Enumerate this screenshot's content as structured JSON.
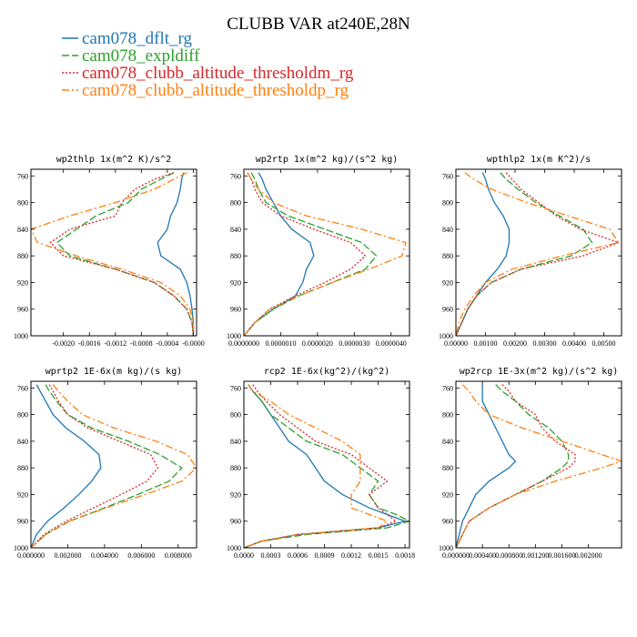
{
  "title": "CLUBB VAR at240E,28N",
  "legend": [
    {
      "name": "cam078_dflt_rg",
      "color": "#1f77b4",
      "dash": ""
    },
    {
      "name": "cam078_expldiff",
      "color": "#2ca02c",
      "dash": "8,3"
    },
    {
      "name": "cam078_clubb_altitude_thresholdm_rg",
      "color": "#d62728",
      "dash": "2,2"
    },
    {
      "name": "cam078_clubb_altitude_thresholdp_rg",
      "color": "#ff7f0e",
      "dash": "8,3,2,3"
    }
  ],
  "chart_data": [
    {
      "type": "line",
      "title": "wp2thlp  1x(m^2 K)/s^2",
      "xlim": [
        -0.0025,
        5e-05
      ],
      "ylim": [
        1000,
        750
      ],
      "yticks": [
        "760",
        "800",
        "840",
        "880",
        "920",
        "960",
        "1000"
      ],
      "xticks": [
        "-0.0020",
        "-0.0016",
        "-0.0012",
        "-0.0008",
        "-0.0004",
        "-0.0000"
      ],
      "y": [
        755,
        765,
        780,
        800,
        820,
        840,
        860,
        880,
        900,
        920,
        940,
        960,
        980,
        1000
      ],
      "series": [
        {
          "name": "cam078_dflt_rg",
          "values": [
            -0.00015,
            -0.00018,
            -0.0002,
            -0.00025,
            -0.00035,
            -0.0004,
            -0.00055,
            -0.0005,
            -0.0002,
            -0.0001,
            -5e-05,
            -2e-05,
            0.0,
            0.0
          ]
        },
        {
          "name": "cam078_expldiff",
          "values": [
            -0.0003,
            -0.0005,
            -0.0008,
            -0.001,
            -0.0015,
            -0.0018,
            -0.0021,
            -0.0019,
            -0.0012,
            -0.0006,
            -0.0003,
            -0.0001,
            -2e-05,
            0.0
          ]
        },
        {
          "name": "cam078_clubb_altitude_thresholdm_rg",
          "values": [
            -0.0003,
            -0.0006,
            -0.0009,
            -0.0011,
            -0.0012,
            -0.0019,
            -0.0022,
            -0.002,
            -0.0012,
            -0.0006,
            -0.0003,
            -0.0001,
            -2e-05,
            0.0
          ]
        },
        {
          "name": "cam078_clubb_altitude_thresholdp_rg",
          "values": [
            -0.0001,
            -0.0003,
            -0.0006,
            -0.0012,
            -0.0019,
            -0.0025,
            -0.0024,
            -0.0018,
            -0.0011,
            -0.0005,
            -0.0002,
            -5e-05,
            0.0,
            0.0
          ]
        }
      ]
    },
    {
      "type": "line",
      "title": "wp2rtp  1x(m^2 kg)/(s^2 kg)",
      "xlim": [
        0,
        4.5e-06
      ],
      "ylim": [
        1000,
        750
      ],
      "yticks": [
        "760",
        "800",
        "840",
        "880",
        "920",
        "960",
        "1000"
      ],
      "xticks": [
        "0.0000000",
        "0.0000010",
        "0.0000020",
        "0.0000030",
        "0.0000040"
      ],
      "y": [
        755,
        765,
        780,
        800,
        820,
        840,
        860,
        880,
        900,
        920,
        940,
        960,
        980,
        1000
      ],
      "series": [
        {
          "name": "cam078_dflt_rg",
          "values": [
            4e-07,
            5e-07,
            6e-07,
            8e-07,
            1e-06,
            1.3e-06,
            1.8e-06,
            1.9e-06,
            1.7e-06,
            1.6e-06,
            1.4e-06,
            8e-07,
            3e-07,
            0.0
          ]
        },
        {
          "name": "cam078_expldiff",
          "values": [
            2e-07,
            3e-07,
            4e-07,
            6e-07,
            1.2e-06,
            2.2e-06,
            3.2e-06,
            3.6e-06,
            3.3e-06,
            2.4e-06,
            1.5e-06,
            8e-07,
            3e-07,
            0.0
          ]
        },
        {
          "name": "cam078_clubb_altitude_thresholdm_rg",
          "values": [
            1e-07,
            2e-07,
            3e-07,
            5e-07,
            1e-06,
            1.9e-06,
            2.9e-06,
            3.3e-06,
            2.9e-06,
            2.2e-06,
            1.4e-06,
            7e-07,
            3e-07,
            0.0
          ]
        },
        {
          "name": "cam078_clubb_altitude_thresholdp_rg",
          "values": [
            1e-07,
            2e-07,
            4e-07,
            8e-07,
            1.7e-06,
            3.2e-06,
            4.4e-06,
            4.3e-06,
            3.4e-06,
            2.4e-06,
            1.5e-06,
            7e-07,
            3e-07,
            0.0
          ]
        }
      ]
    },
    {
      "type": "line",
      "title": "wpthlp2  1x(m K^2)/s",
      "xlim": [
        0,
        0.0056
      ],
      "ylim": [
        1000,
        750
      ],
      "yticks": [
        "760",
        "800",
        "840",
        "880",
        "920",
        "960",
        "1000"
      ],
      "xticks": [
        "0.00000",
        "0.00100",
        "0.00200",
        "0.00300",
        "0.00400",
        "0.00500"
      ],
      "y": [
        755,
        765,
        780,
        800,
        820,
        840,
        860,
        880,
        900,
        920,
        940,
        960,
        980,
        1000
      ],
      "series": [
        {
          "name": "cam078_dflt_rg",
          "values": [
            0.0009,
            0.001,
            0.0011,
            0.0013,
            0.0016,
            0.0018,
            0.0018,
            0.0017,
            0.0014,
            0.001,
            0.0007,
            0.0004,
            0.0002,
            0.0
          ]
        },
        {
          "name": "cam078_expldiff",
          "values": [
            0.0015,
            0.0017,
            0.0021,
            0.0027,
            0.0035,
            0.0043,
            0.0046,
            0.0039,
            0.0022,
            0.0012,
            0.0007,
            0.0004,
            0.0002,
            0.0
          ]
        },
        {
          "name": "cam078_clubb_altitude_thresholdm_rg",
          "values": [
            0.0017,
            0.0019,
            0.0022,
            0.0028,
            0.0034,
            0.0042,
            0.0055,
            0.0043,
            0.0022,
            0.0012,
            0.0007,
            0.0004,
            0.0002,
            0.0
          ]
        },
        {
          "name": "cam078_clubb_altitude_thresholdp_rg",
          "values": [
            0.0003,
            0.0006,
            0.0012,
            0.0024,
            0.0038,
            0.0052,
            0.0055,
            0.0036,
            0.0019,
            0.001,
            0.0006,
            0.0003,
            0.0001,
            0.0
          ]
        }
      ]
    },
    {
      "type": "line",
      "title": "wprtp2  1E-6x(m kg)/(s kg)",
      "xlim": [
        0,
        0.009
      ],
      "ylim": [
        1000,
        750
      ],
      "yticks": [
        "760",
        "800",
        "840",
        "880",
        "920",
        "960",
        "1000"
      ],
      "xticks": [
        "0.000000",
        "0.002000",
        "0.004000",
        "0.006000",
        "0.008000"
      ],
      "y": [
        755,
        765,
        780,
        800,
        820,
        840,
        860,
        880,
        900,
        920,
        940,
        960,
        980,
        1000
      ],
      "series": [
        {
          "name": "cam078_dflt_rg",
          "values": [
            0.0003,
            0.0005,
            0.0008,
            0.0012,
            0.0019,
            0.0029,
            0.0037,
            0.0038,
            0.0033,
            0.0026,
            0.0018,
            0.0009,
            0.0003,
            0.0
          ]
        },
        {
          "name": "cam078_expldiff",
          "values": [
            0.0008,
            0.001,
            0.0014,
            0.002,
            0.0033,
            0.0053,
            0.007,
            0.0082,
            0.0075,
            0.0058,
            0.004,
            0.0021,
            0.0008,
            0.0
          ]
        },
        {
          "name": "cam078_clubb_altitude_thresholdm_rg",
          "values": [
            0.001,
            0.0012,
            0.0015,
            0.002,
            0.0031,
            0.0048,
            0.0065,
            0.0069,
            0.0063,
            0.0049,
            0.0034,
            0.0019,
            0.0007,
            0.0
          ]
        },
        {
          "name": "cam078_clubb_altitude_thresholdp_rg",
          "values": [
            0.0012,
            0.0015,
            0.002,
            0.0028,
            0.0045,
            0.0068,
            0.0085,
            0.009,
            0.0082,
            0.0062,
            0.0041,
            0.0021,
            0.0008,
            0.0
          ]
        }
      ]
    },
    {
      "type": "line",
      "title": "rcp2  1E-6x(kg^2)/(kg^2)",
      "xlim": [
        0,
        0.00185
      ],
      "ylim": [
        1000,
        750
      ],
      "yticks": [
        "760",
        "800",
        "840",
        "880",
        "920",
        "960",
        "1000"
      ],
      "xticks": [
        "0.0000",
        "0.0003",
        "0.0006",
        "0.0009",
        "0.0012",
        "0.0015",
        "0.0018"
      ],
      "y": [
        755,
        765,
        780,
        800,
        820,
        840,
        860,
        880,
        900,
        920,
        940,
        950,
        960,
        970,
        980,
        990,
        1000
      ],
      "series": [
        {
          "name": "cam078_dflt_rg",
          "values": [
            5e-05,
            0.0001,
            0.0002,
            0.0003,
            0.0004,
            0.0005,
            0.0007,
            0.0008,
            0.0009,
            0.0011,
            0.0014,
            0.0016,
            0.0018,
            0.0015,
            0.0006,
            0.0002,
            0.0
          ]
        },
        {
          "name": "cam078_expldiff",
          "values": [
            5e-05,
            0.0001,
            0.0002,
            0.0003,
            0.0005,
            0.0007,
            0.0011,
            0.0013,
            0.0015,
            0.0014,
            0.0015,
            0.0017,
            0.00185,
            0.0016,
            0.0007,
            0.0002,
            0.0
          ]
        },
        {
          "name": "cam078_clubb_altitude_thresholdm_rg",
          "values": [
            0.0001,
            0.00015,
            0.00025,
            0.0004,
            0.0006,
            0.0008,
            0.0012,
            0.0014,
            0.0016,
            0.0014,
            0.0015,
            0.0016,
            0.0017,
            0.0015,
            0.0006,
            0.0002,
            0.0
          ]
        },
        {
          "name": "cam078_clubb_altitude_thresholdp_rg",
          "values": [
            5e-05,
            0.0001,
            0.0003,
            0.0005,
            0.0008,
            0.0011,
            0.0013,
            0.0013,
            0.0013,
            0.0012,
            0.0012,
            0.0014,
            0.0016,
            0.0015,
            0.0006,
            0.0002,
            0.0
          ]
        }
      ]
    },
    {
      "type": "line",
      "title": "wp2rcp  1E-3x(m^2 kg)/(s^2 kg)",
      "xlim": [
        0,
        0.0025
      ],
      "ylim": [
        1000,
        750
      ],
      "yticks": [
        "760",
        "800",
        "840",
        "880",
        "920",
        "960",
        "1000"
      ],
      "xticks": [
        "0.000000",
        "0.000400",
        "0.000800",
        "0.001200",
        "0.001600",
        "0.002000"
      ],
      "y": [
        755,
        765,
        780,
        800,
        820,
        840,
        860,
        870,
        880,
        900,
        920,
        940,
        960,
        980,
        1000
      ],
      "series": [
        {
          "name": "cam078_dflt_rg",
          "values": [
            0.0004,
            0.0004,
            0.0004,
            0.0005,
            0.0006,
            0.0007,
            0.0008,
            0.0009,
            0.0008,
            0.0005,
            0.0003,
            0.0002,
            0.0001,
            5e-05,
            0.0
          ]
        },
        {
          "name": "cam078_expldiff",
          "values": [
            0.0006,
            0.0007,
            0.0009,
            0.0011,
            0.0014,
            0.0016,
            0.0017,
            0.0017,
            0.0016,
            0.0013,
            0.0009,
            0.0005,
            0.0002,
            0.0001,
            0.0
          ]
        },
        {
          "name": "cam078_clubb_altitude_thresholdm_rg",
          "values": [
            0.0007,
            0.0008,
            0.0009,
            0.0012,
            0.0013,
            0.0015,
            0.0018,
            0.0018,
            0.0017,
            0.0013,
            0.0009,
            0.0005,
            0.0002,
            0.0001,
            0.0
          ]
        },
        {
          "name": "cam078_clubb_altitude_thresholdp_rg",
          "values": [
            0.0001,
            0.0002,
            0.0003,
            0.0005,
            0.001,
            0.0016,
            0.0022,
            0.0025,
            0.0022,
            0.0015,
            0.0009,
            0.0005,
            0.0002,
            0.0001,
            0.0
          ]
        }
      ]
    }
  ]
}
